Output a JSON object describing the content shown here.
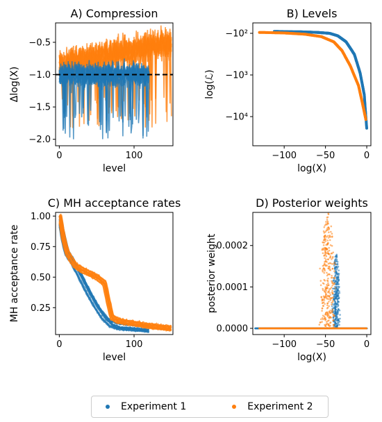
{
  "colors": {
    "exp1": "#1f77b4",
    "exp2": "#ff7f0e"
  },
  "legend": {
    "exp1_label": "Experiment 1",
    "exp2_label": "Experiment 2"
  },
  "chart_data": [
    {
      "id": "A",
      "type": "line",
      "title": "A) Compression",
      "xlabel": "level",
      "ylabel": "Δlog(X)",
      "xlim": [
        -5,
        152
      ],
      "ylim": [
        -2.1,
        -0.2
      ],
      "xticks": [
        0,
        100
      ],
      "yticks": [
        -2.0,
        -1.5,
        -1.0,
        -0.5
      ],
      "ytick_labels": [
        "−2.0",
        "−1.5",
        "−1.0",
        "−0.5"
      ],
      "reference_line": {
        "y": -1.0,
        "style": "dashed"
      },
      "series": [
        {
          "color_key": "exp1",
          "x_max": 120,
          "runs": 10,
          "mean": -1.0,
          "spread": 0.18,
          "min": -2.03,
          "max": -0.3
        },
        {
          "color_key": "exp2",
          "x_max": 150,
          "runs": 10,
          "mean": -0.85,
          "spread": 0.22,
          "min": -2.0,
          "max": -0.15
        }
      ]
    },
    {
      "id": "B",
      "type": "scatter",
      "title": "B) Levels",
      "xlabel": "log(X)",
      "ylabel": "log(ℒ)",
      "xlim": [
        -138,
        5
      ],
      "ylim_log10_negative": [
        1.75,
        4.7
      ],
      "xticks": [
        -100,
        -50,
        0
      ],
      "xtick_labels": [
        "−100",
        "−50",
        "0"
      ],
      "yticks": [
        "−10²",
        "−10³",
        "−10⁴"
      ],
      "series": [
        {
          "color_key": "exp1",
          "x": [
            -112,
            -80,
            -60,
            -45,
            -35,
            -25,
            -15,
            -8,
            -3,
            0
          ],
          "y": [
            -90,
            -92,
            -95,
            -100,
            -115,
            -160,
            -320,
            -900,
            -3000,
            -20000
          ]
        },
        {
          "color_key": "exp2",
          "x": [
            -130,
            -100,
            -75,
            -55,
            -40,
            -30,
            -20,
            -10,
            -5,
            -1
          ],
          "y": [
            -95,
            -98,
            -105,
            -120,
            -160,
            -260,
            -600,
            -1800,
            -5000,
            -12000
          ]
        }
      ]
    },
    {
      "id": "C",
      "type": "line",
      "title": "C) MH acceptance rates",
      "xlabel": "level",
      "ylabel": "MH acceptance rate",
      "xlim": [
        -5,
        152
      ],
      "ylim": [
        0.03,
        1.03
      ],
      "xticks": [
        0,
        100
      ],
      "yticks": [
        0.25,
        0.5,
        0.75,
        1.0
      ],
      "ytick_labels": [
        "0.25",
        "0.50",
        "0.75",
        "1.00"
      ],
      "series": [
        {
          "color_key": "exp1",
          "x": [
            0,
            5,
            10,
            20,
            30,
            40,
            50,
            60,
            70,
            80,
            100,
            120
          ],
          "y": [
            1.0,
            0.85,
            0.72,
            0.62,
            0.5,
            0.38,
            0.27,
            0.18,
            0.12,
            0.1,
            0.09,
            0.08
          ]
        },
        {
          "color_key": "exp2",
          "x": [
            0,
            5,
            10,
            20,
            30,
            40,
            50,
            60,
            65,
            70,
            80,
            100,
            120,
            150
          ],
          "y": [
            1.0,
            0.82,
            0.7,
            0.6,
            0.56,
            0.53,
            0.5,
            0.45,
            0.3,
            0.17,
            0.14,
            0.12,
            0.1,
            0.08
          ]
        }
      ]
    },
    {
      "id": "D",
      "type": "scatter",
      "title": "D) Posterior weights",
      "xlabel": "log(X)",
      "ylabel": "posterior weight",
      "xlim": [
        -138,
        5
      ],
      "ylim": [
        -1.5e-05,
        0.00028
      ],
      "xticks": [
        -100,
        -50,
        0
      ],
      "xtick_labels": [
        "−100",
        "−50",
        "0"
      ],
      "yticks": [
        0.0,
        0.0001,
        0.0002
      ],
      "ytick_labels": [
        "0.0000",
        "0.0001",
        "0.0002"
      ],
      "series": [
        {
          "color_key": "exp1",
          "x_range": [
            -135,
            0
          ],
          "peak_x": -37,
          "peak_width": 4,
          "peak_y": 0.00018
        },
        {
          "color_key": "exp2",
          "x_range": [
            -130,
            0
          ],
          "peak_x": -47,
          "peak_width": 8,
          "peak_y": 0.00028
        }
      ]
    }
  ]
}
